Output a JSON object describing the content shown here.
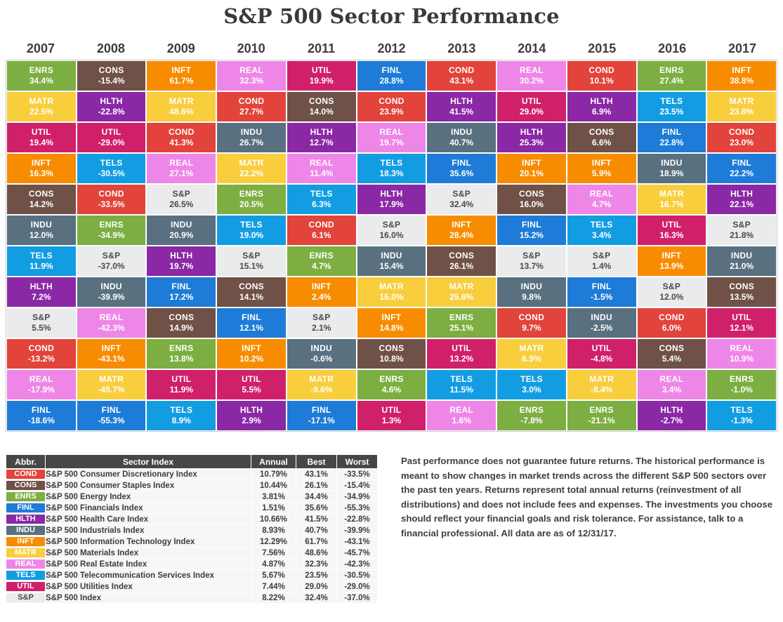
{
  "title": "S&P 500 Sector Performance",
  "colors": {
    "COND": "#E2433A",
    "CONS": "#6F5147",
    "ENRS": "#7CAE41",
    "FINL": "#1E7BD7",
    "HLTH": "#8B28A6",
    "INDU": "#58707F",
    "INFT": "#F78C00",
    "MATR": "#F8CE3D",
    "REAL": "#EE86E8",
    "TELS": "#129DE3",
    "UTIL": "#D02069",
    "S&P": "#E9EBED"
  },
  "chart_data": {
    "type": "heatmap",
    "title": "S&P 500 Sector Performance",
    "description": "Periodic-table style ranking of annual total returns by S&P 500 sector, best to worst top-to-bottom, for each year 2007-2017",
    "years": [
      "2007",
      "2008",
      "2009",
      "2010",
      "2011",
      "2012",
      "2013",
      "2014",
      "2015",
      "2016",
      "2017"
    ],
    "rankings": {
      "2007": [
        [
          "ENRS",
          "34.4%"
        ],
        [
          "MATR",
          "22.5%"
        ],
        [
          "UTIL",
          "19.4%"
        ],
        [
          "INFT",
          "16.3%"
        ],
        [
          "CONS",
          "14.2%"
        ],
        [
          "INDU",
          "12.0%"
        ],
        [
          "TELS",
          "11.9%"
        ],
        [
          "HLTH",
          "7.2%"
        ],
        [
          "S&P",
          "5.5%"
        ],
        [
          "COND",
          "-13.2%"
        ],
        [
          "REAL",
          "-17.9%"
        ],
        [
          "FINL",
          "-18.6%"
        ]
      ],
      "2008": [
        [
          "CONS",
          "-15.4%"
        ],
        [
          "HLTH",
          "-22.8%"
        ],
        [
          "UTIL",
          "-29.0%"
        ],
        [
          "TELS",
          "-30.5%"
        ],
        [
          "COND",
          "-33.5%"
        ],
        [
          "ENRS",
          "-34.9%"
        ],
        [
          "S&P",
          "-37.0%"
        ],
        [
          "INDU",
          "-39.9%"
        ],
        [
          "REAL",
          "-42.3%"
        ],
        [
          "INFT",
          "-43.1%"
        ],
        [
          "MATR",
          "-45.7%"
        ],
        [
          "FINL",
          "-55.3%"
        ]
      ],
      "2009": [
        [
          "INFT",
          "61.7%"
        ],
        [
          "MATR",
          "48.6%"
        ],
        [
          "COND",
          "41.3%"
        ],
        [
          "REAL",
          "27.1%"
        ],
        [
          "S&P",
          "26.5%"
        ],
        [
          "INDU",
          "20.9%"
        ],
        [
          "HLTH",
          "19.7%"
        ],
        [
          "FINL",
          "17.2%"
        ],
        [
          "CONS",
          "14.9%"
        ],
        [
          "ENRS",
          "13.8%"
        ],
        [
          "UTIL",
          "11.9%"
        ],
        [
          "TELS",
          "8.9%"
        ]
      ],
      "2010": [
        [
          "REAL",
          "32.3%"
        ],
        [
          "COND",
          "27.7%"
        ],
        [
          "INDU",
          "26.7%"
        ],
        [
          "MATR",
          "22.2%"
        ],
        [
          "ENRS",
          "20.5%"
        ],
        [
          "TELS",
          "19.0%"
        ],
        [
          "S&P",
          "15.1%"
        ],
        [
          "CONS",
          "14.1%"
        ],
        [
          "FINL",
          "12.1%"
        ],
        [
          "INFT",
          "10.2%"
        ],
        [
          "UTIL",
          "5.5%"
        ],
        [
          "HLTH",
          "2.9%"
        ]
      ],
      "2011": [
        [
          "UTIL",
          "19.9%"
        ],
        [
          "CONS",
          "14.0%"
        ],
        [
          "HLTH",
          "12.7%"
        ],
        [
          "REAL",
          "11.4%"
        ],
        [
          "TELS",
          "6.3%"
        ],
        [
          "COND",
          "6.1%"
        ],
        [
          "ENRS",
          "4.7%"
        ],
        [
          "INFT",
          "2.4%"
        ],
        [
          "S&P",
          "2.1%"
        ],
        [
          "INDU",
          "-0.6%"
        ],
        [
          "MATR",
          "-9.6%"
        ],
        [
          "FINL",
          "-17.1%"
        ]
      ],
      "2012": [
        [
          "FINL",
          "28.8%"
        ],
        [
          "COND",
          "23.9%"
        ],
        [
          "REAL",
          "19.7%"
        ],
        [
          "TELS",
          "18.3%"
        ],
        [
          "HLTH",
          "17.9%"
        ],
        [
          "S&P",
          "16.0%"
        ],
        [
          "INDU",
          "15.4%"
        ],
        [
          "MATR",
          "15.0%"
        ],
        [
          "INFT",
          "14.8%"
        ],
        [
          "CONS",
          "10.8%"
        ],
        [
          "ENRS",
          "4.6%"
        ],
        [
          "UTIL",
          "1.3%"
        ]
      ],
      "2013": [
        [
          "COND",
          "43.1%"
        ],
        [
          "HLTH",
          "41.5%"
        ],
        [
          "INDU",
          "40.7%"
        ],
        [
          "FINL",
          "35.6%"
        ],
        [
          "S&P",
          "32.4%"
        ],
        [
          "INFT",
          "28.4%"
        ],
        [
          "CONS",
          "26.1%"
        ],
        [
          "MATR",
          "25.6%"
        ],
        [
          "ENRS",
          "25.1%"
        ],
        [
          "UTIL",
          "13.2%"
        ],
        [
          "TELS",
          "11.5%"
        ],
        [
          "REAL",
          "1.6%"
        ]
      ],
      "2014": [
        [
          "REAL",
          "30.2%"
        ],
        [
          "UTIL",
          "29.0%"
        ],
        [
          "HLTH",
          "25.3%"
        ],
        [
          "INFT",
          "20.1%"
        ],
        [
          "CONS",
          "16.0%"
        ],
        [
          "FINL",
          "15.2%"
        ],
        [
          "S&P",
          "13.7%"
        ],
        [
          "INDU",
          "9.8%"
        ],
        [
          "COND",
          "9.7%"
        ],
        [
          "MATR",
          "6.9%"
        ],
        [
          "TELS",
          "3.0%"
        ],
        [
          "ENRS",
          "-7.8%"
        ]
      ],
      "2015": [
        [
          "COND",
          "10.1%"
        ],
        [
          "HLTH",
          "6.9%"
        ],
        [
          "CONS",
          "6.6%"
        ],
        [
          "INFT",
          "5.9%"
        ],
        [
          "REAL",
          "4.7%"
        ],
        [
          "TELS",
          "3.4%"
        ],
        [
          "S&P",
          "1.4%"
        ],
        [
          "FINL",
          "-1.5%"
        ],
        [
          "INDU",
          "-2.5%"
        ],
        [
          "UTIL",
          "-4.8%"
        ],
        [
          "MATR",
          "-8.4%"
        ],
        [
          "ENRS",
          "-21.1%"
        ]
      ],
      "2016": [
        [
          "ENRS",
          "27.4%"
        ],
        [
          "TELS",
          "23.5%"
        ],
        [
          "FINL",
          "22.8%"
        ],
        [
          "INDU",
          "18.9%"
        ],
        [
          "MATR",
          "16.7%"
        ],
        [
          "UTIL",
          "16.3%"
        ],
        [
          "INFT",
          "13.9%"
        ],
        [
          "S&P",
          "12.0%"
        ],
        [
          "COND",
          "6.0%"
        ],
        [
          "CONS",
          "5.4%"
        ],
        [
          "REAL",
          "3.4%"
        ],
        [
          "HLTH",
          "-2.7%"
        ]
      ],
      "2017": [
        [
          "INFT",
          "38.8%"
        ],
        [
          "MATR",
          "23.8%"
        ],
        [
          "COND",
          "23.0%"
        ],
        [
          "FINL",
          "22.2%"
        ],
        [
          "HLTH",
          "22.1%"
        ],
        [
          "S&P",
          "21.8%"
        ],
        [
          "INDU",
          "21.0%"
        ],
        [
          "CONS",
          "13.5%"
        ],
        [
          "UTIL",
          "12.1%"
        ],
        [
          "REAL",
          "10.9%"
        ],
        [
          "ENRS",
          "-1.0%"
        ],
        [
          "TELS",
          "-1.3%"
        ]
      ]
    }
  },
  "legend_table": {
    "headers": [
      "Abbr.",
      "Sector Index",
      "Annual",
      "Best",
      "Worst"
    ],
    "rows": [
      {
        "abbr": "COND",
        "name": "S&P 500 Consumer Discretionary Index",
        "annual": "10.79%",
        "best": "43.1%",
        "worst": "-33.5%"
      },
      {
        "abbr": "CONS",
        "name": "S&P 500 Consumer Staples Index",
        "annual": "10.44%",
        "best": "26.1%",
        "worst": "-15.4%"
      },
      {
        "abbr": "ENRS",
        "name": "S&P 500 Energy Index",
        "annual": "3.81%",
        "best": "34.4%",
        "worst": "-34.9%"
      },
      {
        "abbr": "FINL",
        "name": "S&P 500 Financials Index",
        "annual": "1.51%",
        "best": "35.6%",
        "worst": "-55.3%"
      },
      {
        "abbr": "HLTH",
        "name": "S&P 500 Health Care Index",
        "annual": "10.66%",
        "best": "41.5%",
        "worst": "-22.8%"
      },
      {
        "abbr": "INDU",
        "name": "S&P 500 Industrials Index",
        "annual": "8.93%",
        "best": "40.7%",
        "worst": "-39.9%"
      },
      {
        "abbr": "INFT",
        "name": "S&P 500 Information Technology Index",
        "annual": "12.29%",
        "best": "61.7%",
        "worst": "-43.1%"
      },
      {
        "abbr": "MATR",
        "name": "S&P 500 Materials Index",
        "annual": "7.56%",
        "best": "48.6%",
        "worst": "-45.7%"
      },
      {
        "abbr": "REAL",
        "name": "S&P 500 Real Estate Index",
        "annual": "4.87%",
        "best": "32.3%",
        "worst": "-42.3%"
      },
      {
        "abbr": "TELS",
        "name": "S&P 500 Telecommunication Services Index",
        "annual": "5.67%",
        "best": "23.5%",
        "worst": "-30.5%"
      },
      {
        "abbr": "UTIL",
        "name": "S&P 500 Utilities Index",
        "annual": "7.44%",
        "best": "29.0%",
        "worst": "-29.0%"
      },
      {
        "abbr": "S&P",
        "name": "S&P 500 Index",
        "annual": "8.22%",
        "best": "32.4%",
        "worst": "-37.0%"
      }
    ]
  },
  "disclaimer": "Past performance does not guarantee future returns. The historical performance is meant to show changes in market trends across the different S&P 500 sectors over the past ten years. Returns represent total annual returns (reinvestment of all distributions) and does not include fees and expenses. The investments you choose should reflect your financial goals and risk tolerance. For assistance, talk to a financial professional. All data are as of 12/31/17."
}
